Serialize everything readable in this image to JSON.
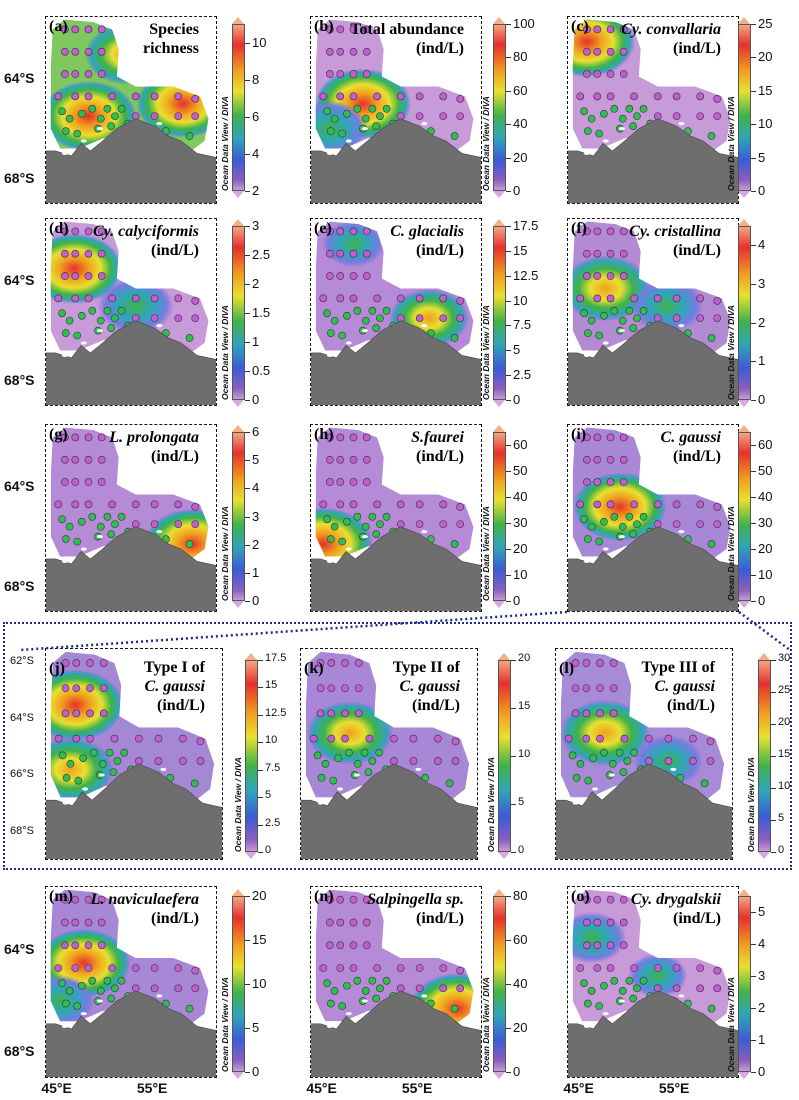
{
  "figure": {
    "lat_labels_main": [
      "64°S",
      "68°S"
    ],
    "lat_labels_expanded": [
      "62°S",
      "64°S",
      "66°S",
      "68°S"
    ],
    "lon_labels": [
      "45°E",
      "55°E"
    ],
    "colorbar_label": "Ocean Data View / DIVA",
    "colorscale": [
      "#f4a582",
      "#e6302b",
      "#f0a020",
      "#e8e030",
      "#3fb24a",
      "#2fa6b8",
      "#3b5bd6",
      "#8a5fbf",
      "#c79ad8"
    ]
  },
  "chart_data": [
    {
      "type": "heatmap",
      "panel": "(a)",
      "title_lines": [
        "Species",
        "richness"
      ],
      "title_italic": [
        false,
        false
      ],
      "colorbar_ticks": [
        "10",
        "8",
        "6",
        "4",
        "2"
      ],
      "colorbar_range": [
        2,
        11
      ],
      "hotspots": [
        {
          "lon": 48,
          "lat": -65.5,
          "intensity": 0.9
        },
        {
          "lon": 52,
          "lat": -63,
          "intensity": 0.7
        },
        {
          "lon": 58,
          "lat": -65,
          "intensity": 0.85
        }
      ]
    },
    {
      "type": "heatmap",
      "panel": "(b)",
      "title_lines": [
        "Total abundance",
        "(ind/L)"
      ],
      "title_italic": [
        false,
        false
      ],
      "colorbar_ticks": [
        "100",
        "80",
        "60",
        "40",
        "20",
        "0"
      ],
      "colorbar_range": [
        0,
        100
      ],
      "hotspots": [
        {
          "lon": 49,
          "lat": -65,
          "intensity": 0.9
        },
        {
          "lon": 45.5,
          "lat": -66,
          "intensity": 0.6
        }
      ]
    },
    {
      "type": "heatmap",
      "panel": "(c)",
      "title_lines": [
        "Cy. convallaria",
        "(ind/L)"
      ],
      "title_italic": [
        true,
        false
      ],
      "colorbar_ticks": [
        "25",
        "20",
        "15",
        "10",
        "5",
        "0"
      ],
      "colorbar_range": [
        0,
        25
      ],
      "hotspots": [
        {
          "lon": 45.5,
          "lat": -62.5,
          "intensity": 0.9
        }
      ]
    },
    {
      "type": "heatmap",
      "panel": "(d)",
      "title_lines": [
        "Cy. calyciformis",
        "(ind/L)"
      ],
      "title_italic": [
        true,
        false
      ],
      "colorbar_ticks": [
        "3",
        "2.5",
        "2",
        "1.5",
        "1",
        "0.5",
        "0"
      ],
      "colorbar_range": [
        0,
        3
      ],
      "hotspots": [
        {
          "lon": 46.5,
          "lat": -63.5,
          "intensity": 0.9
        },
        {
          "lon": 53,
          "lat": -65,
          "intensity": 0.6
        }
      ]
    },
    {
      "type": "heatmap",
      "panel": "(e)",
      "title_lines": [
        "C. glacialis",
        "(ind/L)"
      ],
      "title_italic": [
        true,
        false
      ],
      "colorbar_ticks": [
        "17.5",
        "15",
        "12.5",
        "10",
        "7.5",
        "5",
        "2.5",
        "0"
      ],
      "colorbar_range": [
        0,
        17.5
      ],
      "hotspots": [
        {
          "lon": 56,
          "lat": -65.5,
          "intensity": 0.65
        },
        {
          "lon": 48,
          "lat": -62.5,
          "intensity": 0.4
        }
      ]
    },
    {
      "type": "heatmap",
      "panel": "(f)",
      "title_lines": [
        "Cy. cristallina",
        "(ind/L)"
      ],
      "title_italic": [
        true,
        false
      ],
      "colorbar_ticks": [
        "4",
        "3",
        "2",
        "1",
        "0"
      ],
      "colorbar_range": [
        0,
        4.5
      ],
      "hotspots": [
        {
          "lon": 47.5,
          "lat": -64.3,
          "intensity": 0.8
        },
        {
          "lon": 54,
          "lat": -65,
          "intensity": 0.55
        }
      ]
    },
    {
      "type": "heatmap",
      "panel": "(g)",
      "title_lines": [
        "L. prolongata",
        "(ind/L)"
      ],
      "title_italic": [
        true,
        false
      ],
      "colorbar_ticks": [
        "6",
        "5",
        "4",
        "3",
        "2",
        "1",
        "0"
      ],
      "colorbar_range": [
        0,
        6
      ],
      "hotspots": [
        {
          "lon": 59,
          "lat": -66.3,
          "intensity": 0.9
        }
      ]
    },
    {
      "type": "heatmap",
      "panel": "(h)",
      "title_lines": [
        "S.faurei",
        "(ind/L)"
      ],
      "title_italic": [
        true,
        false
      ],
      "colorbar_ticks": [
        "60",
        "50",
        "40",
        "30",
        "20",
        "10",
        "0"
      ],
      "colorbar_range": [
        0,
        65
      ],
      "hotspots": [
        {
          "lon": 44.8,
          "lat": -66.3,
          "intensity": 0.95
        }
      ]
    },
    {
      "type": "heatmap",
      "panel": "(i)",
      "title_lines": [
        "C. gaussi",
        "(ind/L)"
      ],
      "title_italic": [
        true,
        false
      ],
      "colorbar_ticks": [
        "60",
        "50",
        "40",
        "30",
        "20",
        "10",
        "0"
      ],
      "colorbar_range": [
        0,
        65
      ],
      "hotspots": [
        {
          "lon": 49,
          "lat": -64.8,
          "intensity": 0.85
        }
      ]
    },
    {
      "type": "heatmap",
      "panel": "(j)",
      "title_lines": [
        "Type I of",
        "C. gaussi",
        "(ind/L)"
      ],
      "title_italic": [
        false,
        true,
        false
      ],
      "colorbar_ticks": [
        "17.5",
        "15",
        "12.5",
        "10",
        "7.5",
        "5",
        "2.5",
        "0"
      ],
      "colorbar_range": [
        0,
        17.5
      ],
      "hotspots": [
        {
          "lon": 46.5,
          "lat": -63.5,
          "intensity": 0.9
        },
        {
          "lon": 46,
          "lat": -65.8,
          "intensity": 0.75
        }
      ]
    },
    {
      "type": "heatmap",
      "panel": "(k)",
      "title_lines": [
        "Type II of",
        "C. gaussi",
        "(ind/L)"
      ],
      "title_italic": [
        false,
        true,
        false
      ],
      "colorbar_ticks": [
        "20",
        "15",
        "10",
        "5",
        "0"
      ],
      "colorbar_range": [
        0,
        20
      ],
      "hotspots": [
        {
          "lon": 48.5,
          "lat": -64.5,
          "intensity": 0.75
        }
      ]
    },
    {
      "type": "heatmap",
      "panel": "(l)",
      "title_lines": [
        "Type III of",
        "C. gaussi",
        "(ind/L)"
      ],
      "title_italic": [
        false,
        true,
        false
      ],
      "colorbar_ticks": [
        "30",
        "25",
        "20",
        "15",
        "10",
        "5",
        "0"
      ],
      "colorbar_range": [
        0,
        30
      ],
      "hotspots": [
        {
          "lon": 48.5,
          "lat": -64.5,
          "intensity": 0.8
        },
        {
          "lon": 55,
          "lat": -65.5,
          "intensity": 0.5
        }
      ]
    },
    {
      "type": "heatmap",
      "panel": "(m)",
      "title_lines": [
        "L. naviculaefera",
        "(ind/L)"
      ],
      "title_italic": [
        true,
        false
      ],
      "colorbar_ticks": [
        "20",
        "15",
        "10",
        "5",
        "0"
      ],
      "colorbar_range": [
        0,
        20
      ],
      "hotspots": [
        {
          "lon": 47.5,
          "lat": -64.5,
          "intensity": 0.85
        },
        {
          "lon": 45,
          "lat": -66,
          "intensity": 0.5
        }
      ]
    },
    {
      "type": "heatmap",
      "panel": "(n)",
      "title_lines": [
        "Salpingella sp.",
        "(ind/L)"
      ],
      "title_italic": [
        true,
        false
      ],
      "colorbar_ticks": [
        "80",
        "60",
        "40",
        "20",
        "0"
      ],
      "colorbar_range": [
        0,
        80
      ],
      "hotspots": [
        {
          "lon": 59,
          "lat": -66.3,
          "intensity": 0.9
        }
      ]
    },
    {
      "type": "heatmap",
      "panel": "(o)",
      "title_lines": [
        "Cy. drygalskii",
        "(ind/L)"
      ],
      "title_italic": [
        true,
        false
      ],
      "colorbar_ticks": [
        "5",
        "4",
        "3",
        "2",
        "1",
        "0"
      ],
      "colorbar_range": [
        0,
        5.5
      ],
      "hotspots": [
        {
          "lon": 46,
          "lat": -63.5,
          "intensity": 0.5
        },
        {
          "lon": 53,
          "lat": -65,
          "intensity": 0.35
        }
      ]
    }
  ]
}
